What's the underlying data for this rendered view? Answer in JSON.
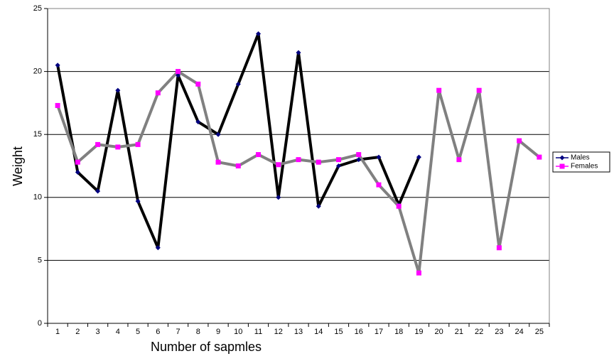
{
  "chart_data": {
    "type": "line",
    "y_label": "Weight",
    "x_label": "Number of sapmles",
    "categories": [
      1,
      2,
      3,
      4,
      5,
      6,
      7,
      8,
      9,
      10,
      11,
      12,
      13,
      14,
      15,
      16,
      17,
      18,
      19,
      20,
      21,
      22,
      23,
      24,
      25
    ],
    "series": [
      {
        "name": "Males",
        "color": "#000000",
        "marker_color": "#000080",
        "marker": "diamond",
        "values": [
          20.5,
          12,
          10.5,
          18.5,
          9.7,
          6,
          19.7,
          16,
          15,
          19,
          23,
          10,
          21.5,
          9.3,
          12.5,
          13,
          13.2,
          9.4,
          13.2,
          null,
          null,
          null,
          null,
          null,
          null
        ]
      },
      {
        "name": "Females",
        "color": "#808080",
        "marker_color": "#ff00ff",
        "marker": "square",
        "values": [
          17.3,
          12.8,
          14.2,
          14,
          14.2,
          18.3,
          20,
          19,
          12.8,
          12.5,
          13.4,
          12.6,
          13,
          12.8,
          13,
          13.4,
          11,
          9.3,
          4,
          18.5,
          13,
          18.5,
          6,
          14.5,
          13.2
        ]
      }
    ],
    "ylim": [
      0,
      25
    ],
    "yticks": [
      0,
      5,
      10,
      15,
      20,
      25
    ],
    "grid": true,
    "legend": "right"
  }
}
